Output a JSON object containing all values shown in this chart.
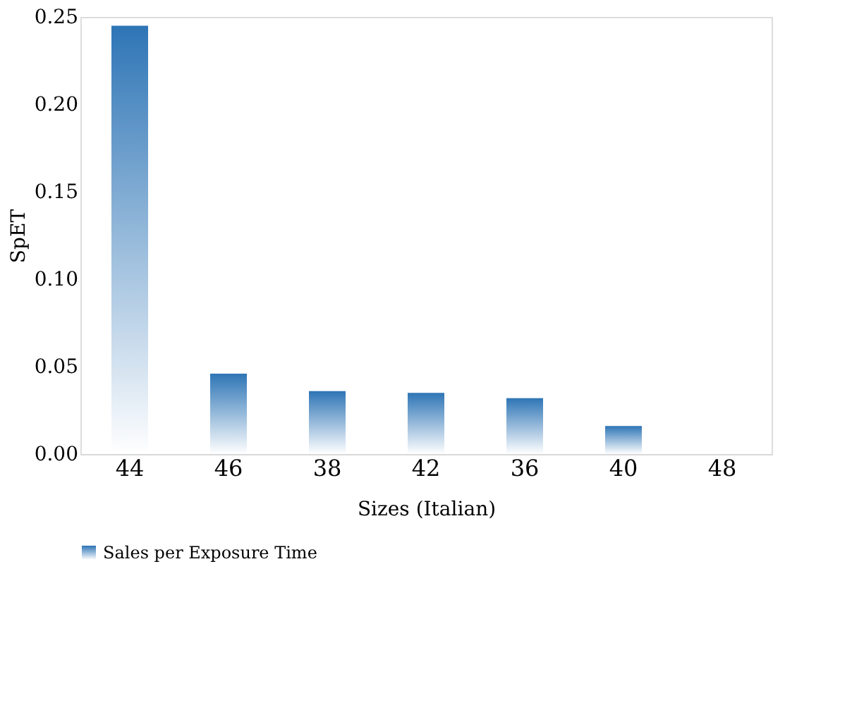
{
  "chart_data": {
    "type": "bar",
    "xlabel": "Sizes (Italian)",
    "ylabel": "SpET",
    "categories": [
      "44",
      "46",
      "38",
      "42",
      "36",
      "40",
      "48"
    ],
    "series": [
      {
        "name": "Sales per Exposure Time",
        "color": "#2e75b6",
        "values": [
          0.245,
          0.046,
          0.036,
          0.035,
          0.032,
          0.016,
          0
        ]
      }
    ],
    "ylim": [
      0,
      0.25
    ],
    "yticks": [
      {
        "value": 0,
        "label": "0.00"
      },
      {
        "value": 0.05,
        "label": "0.05"
      },
      {
        "value": 0.1,
        "label": "0.10"
      },
      {
        "value": 0.15,
        "label": "0.15"
      },
      {
        "value": 0.2,
        "label": "0.20"
      },
      {
        "value": 0.25,
        "label": "0.25"
      }
    ],
    "grid": false,
    "legend": "bottom"
  }
}
